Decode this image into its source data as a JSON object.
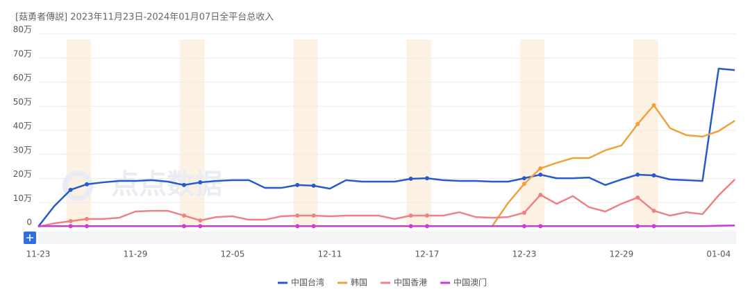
{
  "chart_data": {
    "type": "line",
    "title": "[菇勇者傳説] 2023年11月23日-2024年01月07日全平台总收入",
    "watermark": "点点数据",
    "categories": [
      "11-23",
      null,
      null,
      null,
      null,
      null,
      "11-29",
      null,
      null,
      null,
      null,
      null,
      "12-05",
      null,
      null,
      null,
      null,
      null,
      "12-11",
      null,
      null,
      null,
      null,
      null,
      "12-17",
      null,
      null,
      null,
      null,
      null,
      "12-23",
      null,
      null,
      null,
      null,
      null,
      "12-29",
      null,
      null,
      null,
      null,
      null,
      "01-04",
      null
    ],
    "ylim": [
      0,
      80
    ],
    "yticks": [
      0,
      {
        "value": 10,
        "label": "10万"
      },
      {
        "value": 20,
        "label": "20万"
      },
      {
        "value": 30,
        "label": "30万"
      },
      {
        "value": 40,
        "label": "40万"
      },
      {
        "value": 50,
        "label": "50万"
      },
      {
        "value": 60,
        "label": "60万"
      },
      {
        "value": 70,
        "label": "70万"
      },
      {
        "value": 80,
        "label": "80万"
      }
    ],
    "grid": true,
    "highlight": [
      [
        2,
        3
      ],
      [
        9,
        10
      ],
      [
        16,
        17
      ],
      [
        23,
        24
      ],
      [
        30,
        31
      ],
      [
        37,
        38
      ]
    ],
    "series": [
      {
        "name": "中国台湾",
        "color": "#2659c9",
        "values": [
          0,
          8.6,
          15.3,
          17.6,
          18.4,
          19,
          19,
          19.3,
          18.7,
          17.3,
          18.4,
          19,
          19.3,
          19.3,
          16.1,
          16.1,
          17.3,
          17,
          15.8,
          19.3,
          18.7,
          18.7,
          18.7,
          19.9,
          20.1,
          19.3,
          19,
          19,
          18.7,
          18.7,
          20.1,
          21.6,
          20.1,
          20.1,
          20.4,
          17.3,
          19.6,
          21.6,
          21.3,
          19.6,
          19.3,
          19,
          65.6,
          65
        ]
      },
      {
        "name": "韩国",
        "color": "#f0a23a",
        "values": [
          null,
          null,
          null,
          null,
          null,
          null,
          null,
          null,
          null,
          null,
          null,
          null,
          null,
          null,
          null,
          null,
          null,
          null,
          null,
          null,
          null,
          null,
          null,
          null,
          null,
          null,
          null,
          null,
          0,
          9.8,
          17.8,
          24.2,
          26.5,
          28.5,
          28.5,
          31.7,
          33.7,
          42.6,
          50.4,
          40.9,
          38,
          37.4,
          39.7,
          44
        ]
      },
      {
        "name": "中国香港",
        "color": "#ee8186",
        "values": [
          0,
          1.4,
          2.3,
          3.2,
          3.2,
          3.7,
          6.3,
          6.6,
          6.6,
          4.6,
          2.6,
          4,
          4.3,
          2.9,
          2.9,
          4.3,
          4.6,
          4.6,
          4.3,
          4.6,
          4.6,
          4.6,
          3.2,
          4.6,
          4.6,
          4.6,
          6,
          4,
          3.7,
          4,
          5.8,
          13.2,
          9.5,
          12.7,
          8.1,
          6.3,
          9.5,
          12.1,
          6.6,
          4.6,
          6,
          5.2,
          13,
          19.6
        ]
      },
      {
        "name": "中国澳门",
        "color": "#c93ad6",
        "values": [
          0.2,
          0.2,
          0.2,
          0.2,
          0.2,
          0.2,
          0.2,
          0.2,
          0.2,
          0.2,
          0.2,
          0.2,
          0.2,
          0.2,
          0.2,
          0.2,
          0.2,
          0.2,
          0.2,
          0.2,
          0.2,
          0.2,
          0.2,
          0.2,
          0.2,
          0.2,
          0.2,
          0.2,
          0.2,
          0.2,
          0.2,
          0.2,
          0.2,
          0.2,
          0.2,
          0.2,
          0.2,
          0.2,
          0.2,
          0.2,
          0.2,
          0.2,
          0.4,
          0.5
        ]
      }
    ]
  }
}
